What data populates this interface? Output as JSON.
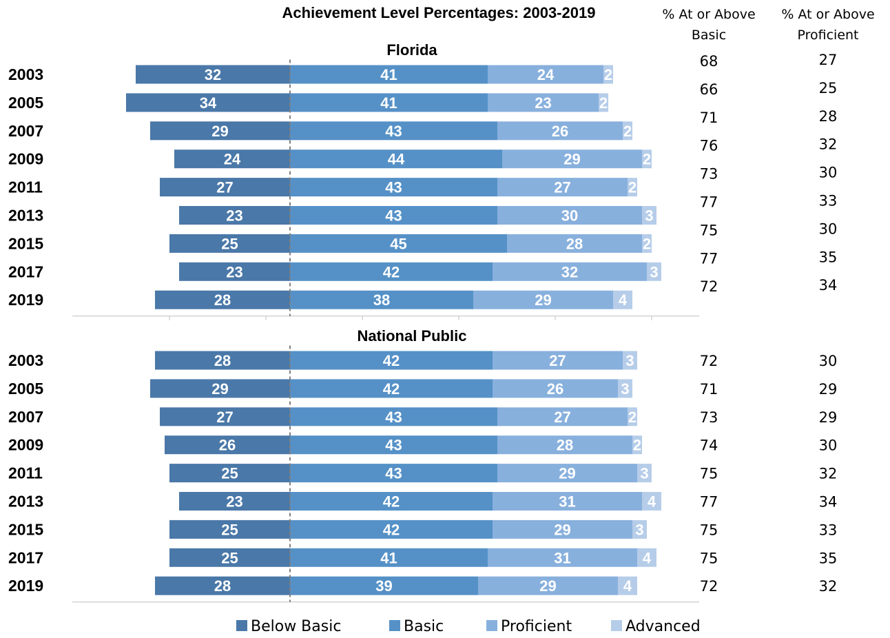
{
  "chart_data": {
    "type": "bar",
    "orientation": "horizontal",
    "stacked": "diverging",
    "title": "Achievement Level Percentages: 2003-2019",
    "column_headers": {
      "basic": [
        "% At or Above",
        "Basic"
      ],
      "proficient": [
        "% At or Above",
        "Proficient"
      ]
    },
    "levels": [
      "Below Basic",
      "Basic",
      "Proficient",
      "Advanced"
    ],
    "colors": {
      "Below Basic": "#4a78a8",
      "Basic": "#5591c7",
      "Proficient": "#88b0dd",
      "Advanced": "#b6cde9"
    },
    "panels": [
      {
        "name": "Florida",
        "years": [
          "2003",
          "2005",
          "2007",
          "2009",
          "2011",
          "2013",
          "2015",
          "2017",
          "2019"
        ],
        "below_basic": [
          32,
          34,
          29,
          24,
          27,
          23,
          25,
          23,
          28
        ],
        "basic": [
          41,
          41,
          43,
          44,
          43,
          43,
          45,
          42,
          38
        ],
        "proficient": [
          24,
          23,
          26,
          29,
          27,
          30,
          28,
          32,
          29
        ],
        "advanced": [
          2,
          2,
          2,
          2,
          2,
          3,
          2,
          3,
          4
        ],
        "at_or_above_basic": [
          68,
          66,
          71,
          76,
          73,
          77,
          75,
          77,
          72
        ],
        "at_or_above_proficient": [
          27,
          25,
          28,
          32,
          30,
          33,
          30,
          35,
          34
        ]
      },
      {
        "name": "National Public",
        "years": [
          "2003",
          "2005",
          "2007",
          "2009",
          "2011",
          "2013",
          "2015",
          "2017",
          "2019"
        ],
        "below_basic": [
          28,
          29,
          27,
          26,
          25,
          23,
          25,
          25,
          28
        ],
        "basic": [
          42,
          42,
          43,
          43,
          43,
          42,
          42,
          41,
          39
        ],
        "proficient": [
          27,
          26,
          27,
          28,
          29,
          31,
          29,
          31,
          29
        ],
        "advanced": [
          3,
          3,
          2,
          2,
          3,
          4,
          3,
          4,
          4
        ],
        "at_or_above_basic": [
          72,
          71,
          73,
          74,
          75,
          77,
          75,
          75,
          72
        ],
        "at_or_above_proficient": [
          30,
          29,
          29,
          30,
          32,
          34,
          33,
          35,
          32
        ]
      }
    ],
    "legend": [
      "Below Basic",
      "Basic",
      "Proficient",
      "Advanced"
    ],
    "legend_position": "bottom"
  }
}
